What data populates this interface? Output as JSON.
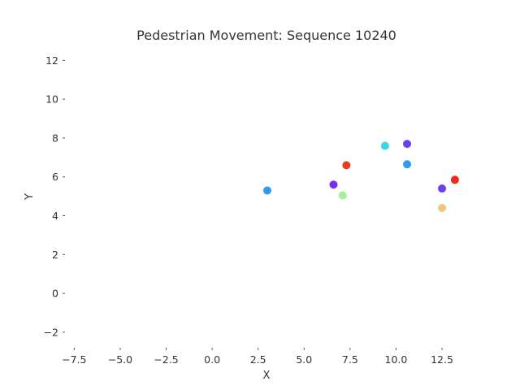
{
  "chart_data": {
    "type": "scatter",
    "title": "Pedestrian Movement: Sequence 10240",
    "xlabel": "X",
    "ylabel": "Y",
    "xlim": [
      -8.0,
      14.0
    ],
    "ylim": [
      -2.8,
      12.6
    ],
    "grid": false,
    "xticks": [
      -7.5,
      -5.0,
      -2.5,
      0.0,
      2.5,
      5.0,
      7.5,
      10.0,
      12.5
    ],
    "xtick_labels": [
      "−7.5",
      "−5.0",
      "−2.5",
      "0.0",
      "2.5",
      "5.0",
      "7.5",
      "10.0",
      "12.5"
    ],
    "yticks": [
      -2,
      0,
      2,
      4,
      6,
      8,
      10,
      12
    ],
    "ytick_labels": [
      "−2",
      "0",
      "2",
      "4",
      "6",
      "8",
      "10",
      "12"
    ],
    "points": [
      {
        "x": 3.0,
        "y": 5.3,
        "color": "#2f9af3"
      },
      {
        "x": 6.6,
        "y": 5.6,
        "color": "#7a2ff0"
      },
      {
        "x": 7.1,
        "y": 5.05,
        "color": "#a3f29a"
      },
      {
        "x": 7.3,
        "y": 6.6,
        "color": "#ef3a22"
      },
      {
        "x": 9.4,
        "y": 7.6,
        "color": "#3ad8e2"
      },
      {
        "x": 10.6,
        "y": 7.7,
        "color": "#6a40ee"
      },
      {
        "x": 10.6,
        "y": 6.65,
        "color": "#2f9af3"
      },
      {
        "x": 12.5,
        "y": 5.4,
        "color": "#6a40ee"
      },
      {
        "x": 12.5,
        "y": 4.4,
        "color": "#f2c57a"
      },
      {
        "x": 13.2,
        "y": 5.85,
        "color": "#f02a1a"
      }
    ]
  }
}
